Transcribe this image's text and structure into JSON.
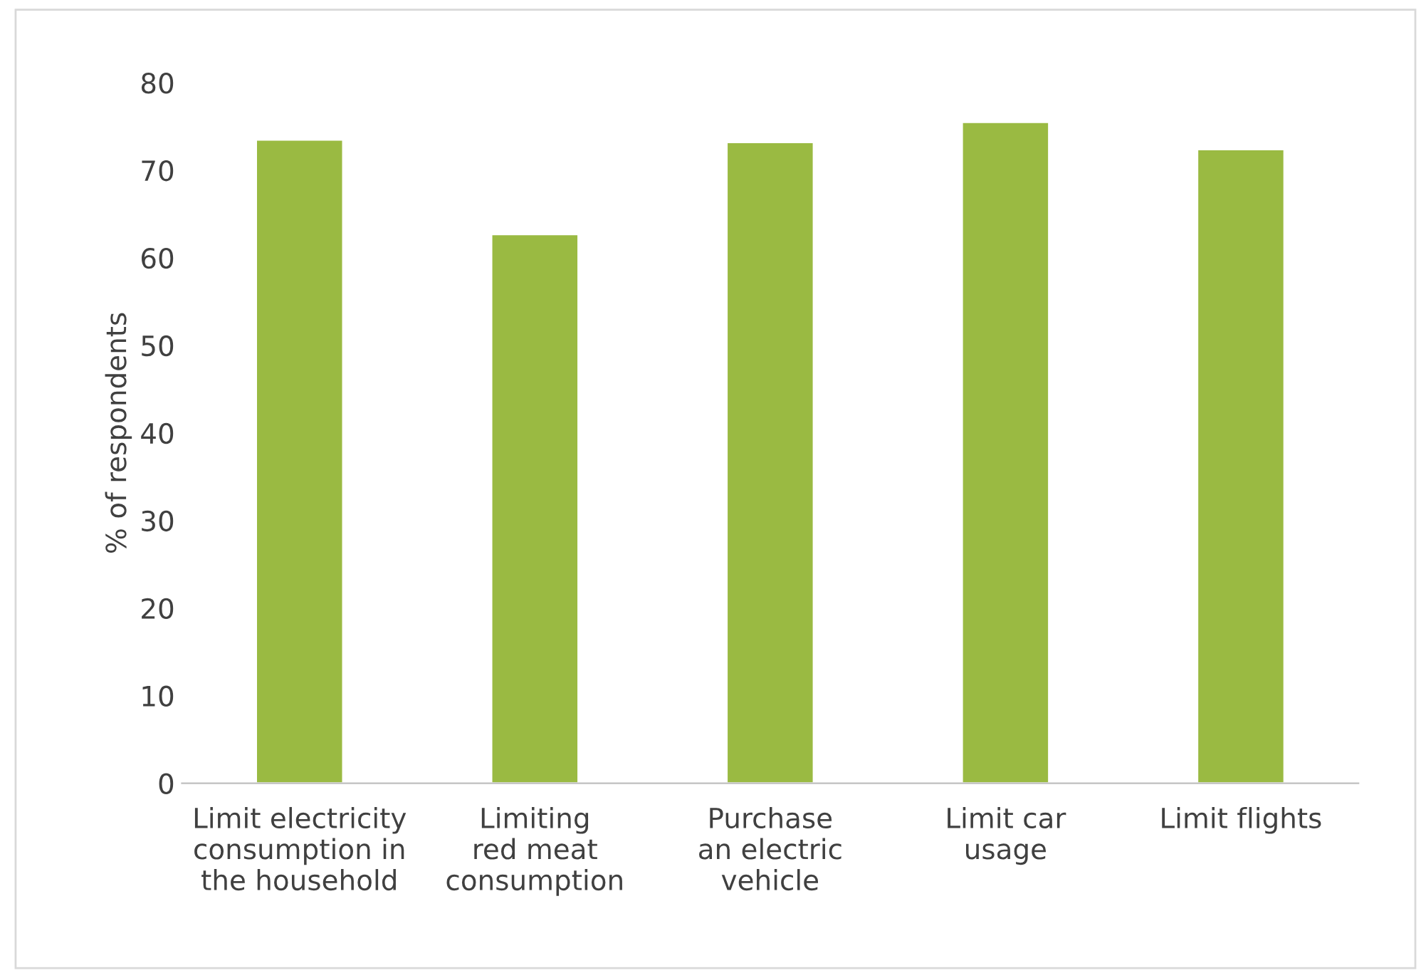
{
  "chart_data": {
    "type": "bar",
    "ylabel": "% of respondents",
    "categories": [
      "Limit electricity\nconsumption in\nthe household",
      "Limiting\nred meat\nconsumption",
      "Purchase\nan electric\nvehicle",
      "Limit car\nusage",
      "Limit flights"
    ],
    "values": [
      73.5,
      62.7,
      73.2,
      75.5,
      72.4
    ],
    "color": "#9aba42",
    "ylim": [
      0,
      80
    ],
    "yticks": [
      0,
      10,
      20,
      30,
      40,
      50,
      60,
      70,
      80
    ],
    "grid": false,
    "legend": false
  }
}
